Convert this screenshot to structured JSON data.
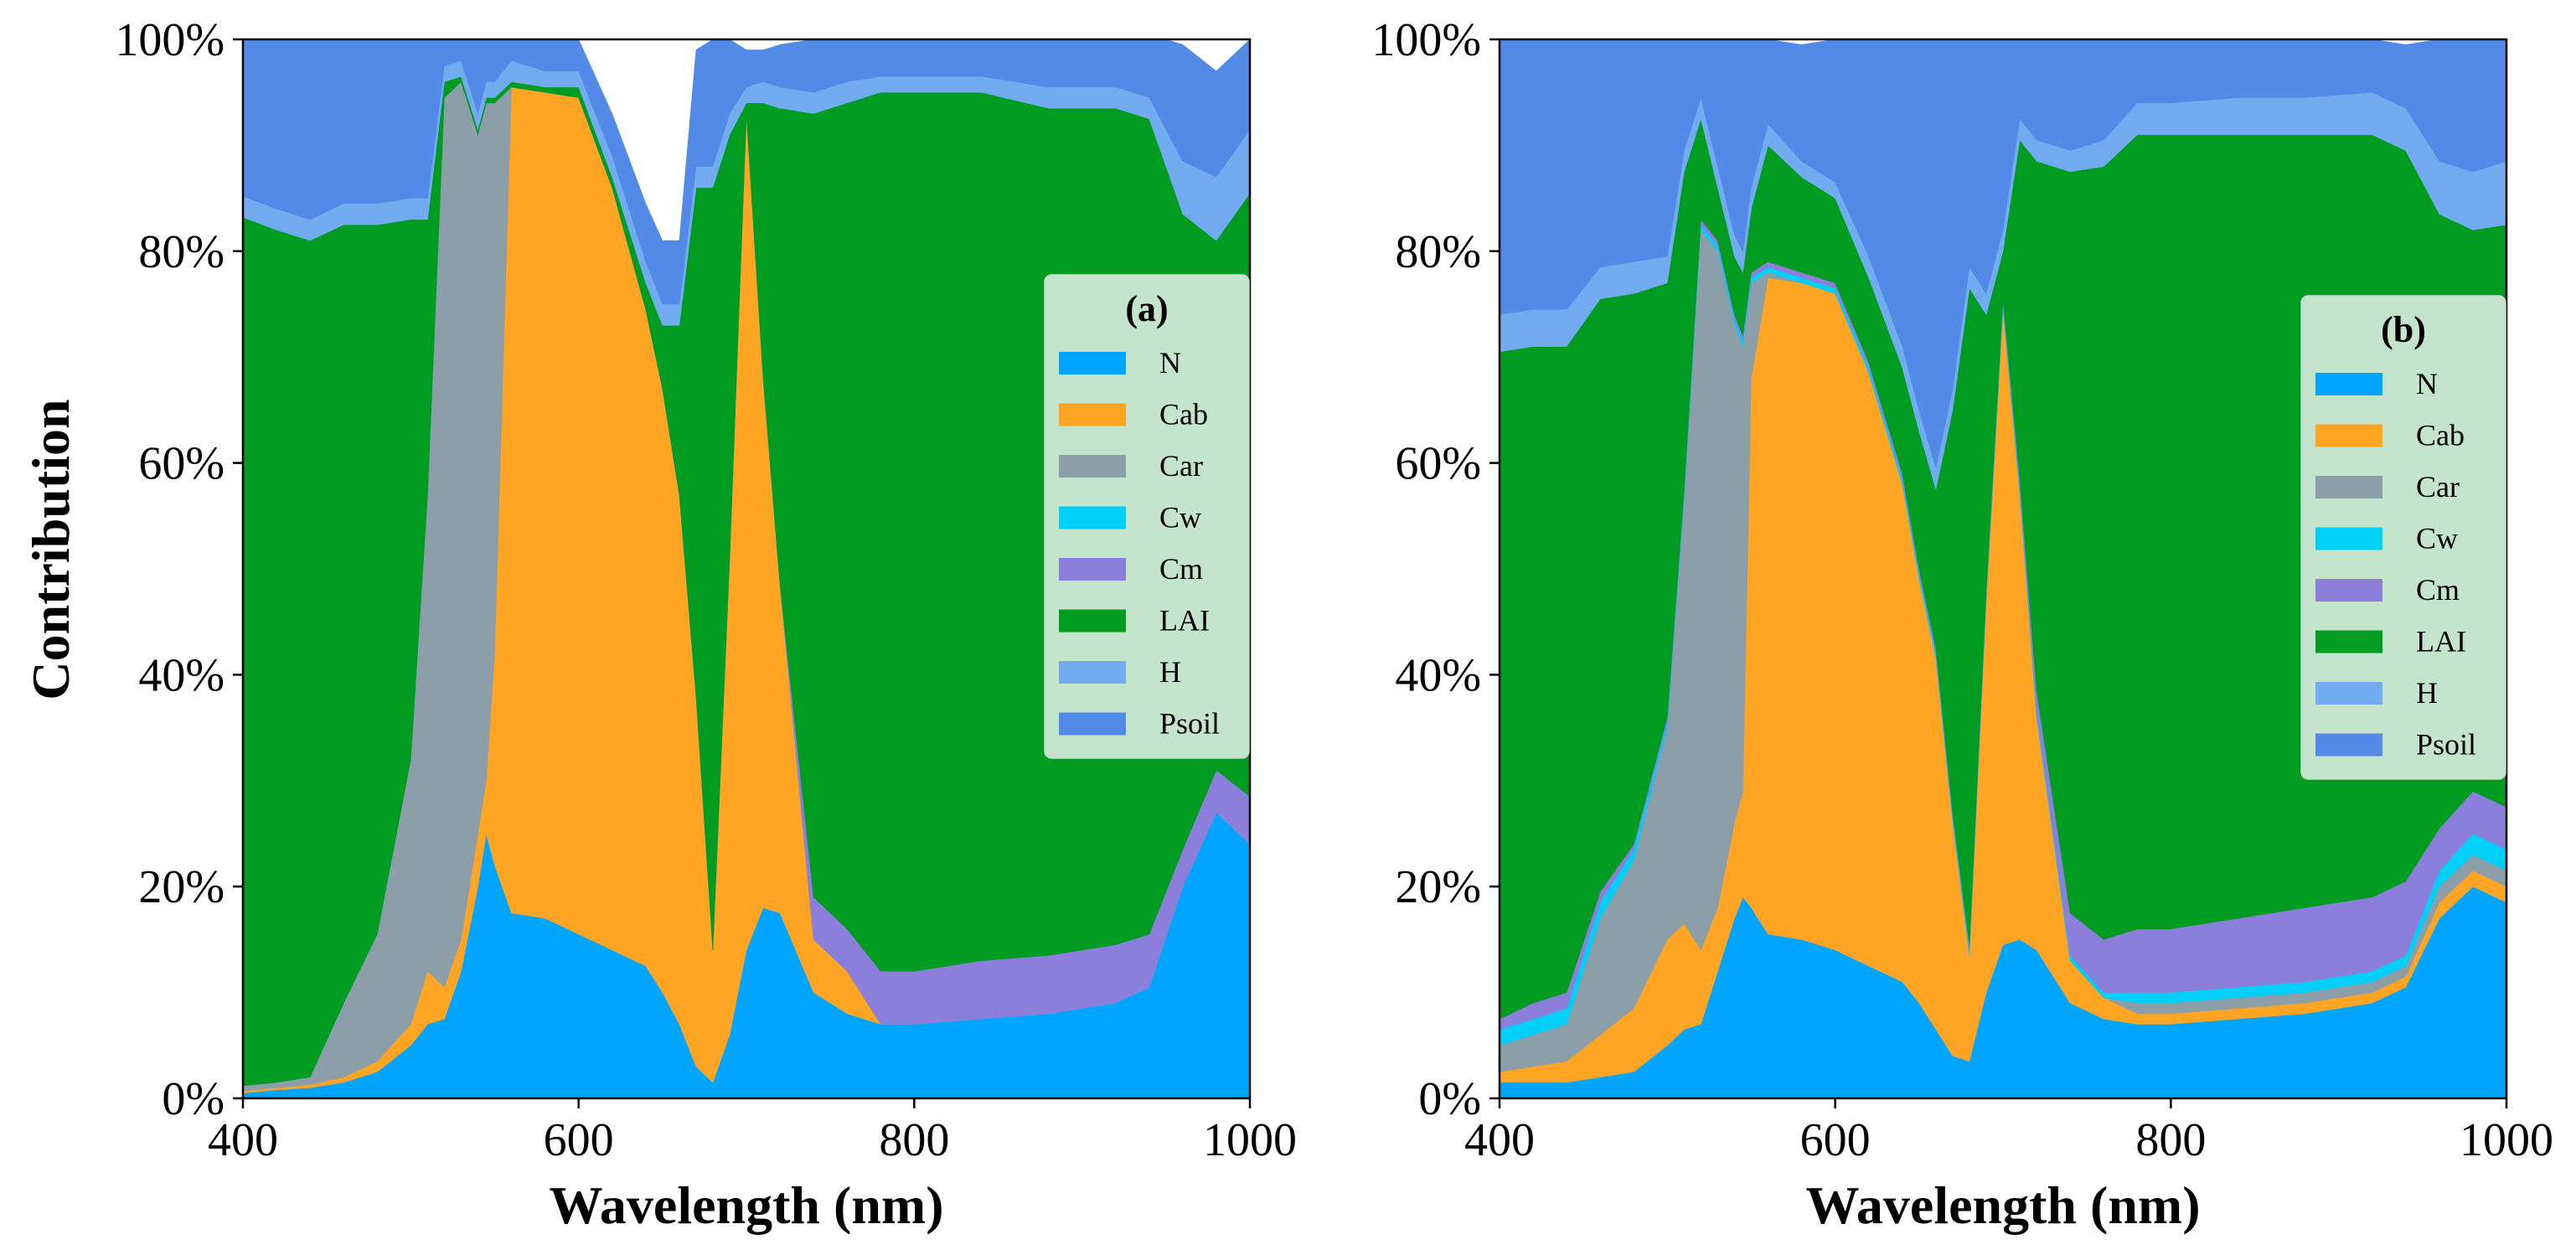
{
  "figure": {
    "ylabel": "Contribution",
    "xlabel": "Wavelength (nm)"
  },
  "colors": {
    "N": "#00a5ff",
    "Cab": "#ffa423",
    "Car": "#8c9ea8",
    "Cw": "#00d0f8",
    "Cm": "#8c7fdb",
    "LAI": "#009b21",
    "H": "#72abf0",
    "Psoil": "#538ae8"
  },
  "chart_data": [
    {
      "type": "area",
      "stacked": true,
      "panel": "a",
      "legend_title": "(a)",
      "legend_position": "center-right",
      "xlabel": "Wavelength (nm)",
      "ylabel": "Contribution",
      "xlim": [
        400,
        1000
      ],
      "ylim": [
        0,
        100
      ],
      "x_ticks": [
        "400",
        "600",
        "800",
        "1000"
      ],
      "y_ticks": [
        "0%",
        "20%",
        "40%",
        "60%",
        "80%",
        "100%"
      ],
      "x": [
        400,
        420,
        440,
        460,
        480,
        500,
        510,
        520,
        530,
        540,
        545,
        550,
        560,
        580,
        600,
        620,
        640,
        650,
        660,
        670,
        680,
        690,
        700,
        710,
        720,
        740,
        760,
        780,
        800,
        840,
        880,
        920,
        940,
        960,
        980,
        1000
      ],
      "series": [
        {
          "name": "N",
          "values": [
            0.5,
            0.8,
            1,
            1.5,
            2.5,
            5,
            7,
            7.5,
            12,
            20,
            25,
            22,
            17.5,
            17,
            15.5,
            14,
            12.5,
            10,
            7,
            3,
            1.5,
            6,
            14,
            18,
            17.5,
            10,
            8,
            7,
            7,
            7.5,
            8,
            9,
            10.5,
            20,
            27,
            24
          ]
        },
        {
          "name": "Cab",
          "values": [
            0.2,
            0.2,
            0.3,
            0.5,
            1,
            2,
            5,
            3,
            3,
            5,
            5,
            20,
            78,
            78,
            79,
            72,
            62,
            57,
            50,
            35,
            12.5,
            45,
            79,
            50,
            31,
            5,
            4,
            0,
            0,
            0,
            0,
            0,
            0,
            0,
            0,
            0
          ]
        },
        {
          "name": "Car",
          "values": [
            0.5,
            0.5,
            0.7,
            7,
            12,
            25,
            45,
            84,
            81,
            66,
            64,
            52,
            0,
            0,
            0,
            0,
            0,
            0,
            0,
            0,
            0,
            0,
            0,
            0,
            0,
            0,
            0,
            0,
            0,
            0,
            0,
            0,
            0,
            0,
            0,
            0
          ]
        },
        {
          "name": "Cw",
          "values": [
            0,
            0,
            0,
            0,
            0,
            0,
            0,
            0,
            0,
            0,
            0,
            0,
            0,
            0,
            0,
            0,
            0,
            0,
            0,
            0,
            0,
            0,
            0,
            0,
            0,
            0,
            0,
            0,
            0,
            0,
            0,
            0,
            0,
            0,
            0,
            0
          ]
        },
        {
          "name": "Cm",
          "values": [
            0,
            0,
            0,
            0,
            0,
            0,
            0,
            0,
            0,
            0,
            0,
            0,
            0,
            0,
            0,
            0,
            0,
            0,
            0,
            0,
            0,
            0,
            0,
            0,
            0,
            4,
            4,
            5,
            5,
            5.5,
            5.5,
            5.5,
            5,
            3.5,
            4,
            4.5
          ]
        },
        {
          "name": "LAI",
          "values": [
            82,
            80.5,
            79,
            73.5,
            67,
            51,
            26,
            1.5,
            0.5,
            0.5,
            0.5,
            0.5,
            0.5,
            0.5,
            1,
            1,
            2.5,
            6,
            16,
            48,
            72,
            40,
            1,
            26,
            45,
            74,
            78,
            83,
            83,
            82,
            80,
            79,
            77,
            60,
            50,
            57
          ]
        },
        {
          "name": "H",
          "values": [
            2,
            2,
            2,
            2,
            2,
            2,
            2,
            1.5,
            1.5,
            1.5,
            1.5,
            1.5,
            2,
            1.5,
            1.5,
            2,
            2,
            2,
            2,
            2,
            2,
            2,
            1.5,
            2,
            2,
            2,
            2,
            1.5,
            1.5,
            1.5,
            2,
            2,
            2,
            5,
            6,
            6
          ]
        },
        {
          "name": "Psoil",
          "values": [
            14.8,
            16,
            17,
            15.5,
            15.5,
            15,
            15,
            2.5,
            2,
            7,
            4,
            4,
            2,
            3,
            3,
            4,
            5.5,
            6,
            6,
            11,
            12,
            7,
            3.5,
            3,
            4,
            5,
            4,
            3.5,
            3.5,
            4,
            4.5,
            5.5,
            6,
            11,
            10,
            8.5
          ]
        }
      ]
    },
    {
      "type": "area",
      "stacked": true,
      "panel": "b",
      "legend_title": "(b)",
      "legend_position": "center-right",
      "xlabel": "Wavelength (nm)",
      "ylabel": "Contribution",
      "xlim": [
        400,
        1000
      ],
      "ylim": [
        0,
        100
      ],
      "x_ticks": [
        "400",
        "600",
        "800",
        "1000"
      ],
      "y_ticks": [
        "0%",
        "20%",
        "40%",
        "60%",
        "80%",
        "100%"
      ],
      "x": [
        400,
        420,
        440,
        460,
        480,
        500,
        510,
        520,
        530,
        540,
        545,
        550,
        560,
        580,
        600,
        620,
        640,
        650,
        660,
        670,
        680,
        690,
        700,
        710,
        720,
        740,
        760,
        780,
        800,
        840,
        880,
        920,
        940,
        960,
        980,
        1000
      ],
      "series": [
        {
          "name": "N",
          "values": [
            1.5,
            1.5,
            1.5,
            2,
            2.5,
            5,
            6.5,
            7,
            12,
            17,
            19,
            18,
            15.5,
            15,
            14,
            12.5,
            11,
            9,
            6.5,
            4,
            3.5,
            10,
            14.5,
            15,
            14,
            9,
            7.5,
            7,
            7,
            7.5,
            8,
            9,
            10.5,
            17,
            20,
            18.5
          ]
        },
        {
          "name": "Cab",
          "values": [
            1,
            1.5,
            2,
            4,
            6,
            10,
            10,
            7,
            6,
            9,
            10,
            50,
            62,
            62,
            62,
            56,
            47,
            40,
            35,
            22,
            10,
            37,
            60,
            42,
            22,
            4,
            2,
            1,
            1,
            1,
            1,
            1,
            1,
            1.5,
            1.5,
            1.5
          ]
        },
        {
          "name": "Car",
          "values": [
            2.5,
            3,
            3.5,
            11,
            14,
            20,
            40,
            68,
            62,
            47,
            42,
            9,
            0.5,
            0,
            0,
            0,
            0,
            0,
            0,
            0,
            0,
            0,
            0,
            0,
            0,
            0,
            0,
            1,
            1,
            1,
            1,
            1,
            1,
            1.5,
            1.5,
            1.5
          ]
        },
        {
          "name": "Cw",
          "values": [
            1.5,
            1.5,
            1.5,
            1.5,
            1,
            0.5,
            0.5,
            0.5,
            0.5,
            0.5,
            0.5,
            0.5,
            0.5,
            0.5,
            0.5,
            0.5,
            0.5,
            0.5,
            0.5,
            0.5,
            0.5,
            0.5,
            0.5,
            0.5,
            0.5,
            0.5,
            0.5,
            1,
            1,
            1,
            1,
            1,
            1,
            1.5,
            2,
            2
          ]
        },
        {
          "name": "Cm",
          "values": [
            1,
            1.5,
            1.5,
            1,
            0.5,
            0.5,
            0.5,
            0.5,
            0.5,
            0.5,
            0.5,
            0.5,
            0.5,
            0.5,
            0.5,
            0.5,
            0.5,
            0.5,
            0.5,
            0.5,
            0.5,
            0.5,
            0.5,
            1,
            2,
            4,
            5,
            6,
            6,
            6.5,
            7,
            7,
            7,
            4,
            4,
            4
          ]
        },
        {
          "name": "LAI",
          "values": [
            63,
            62,
            61,
            56,
            52,
            41,
            30,
            9.5,
            5,
            5.5,
            6,
            6,
            11,
            9,
            8,
            8,
            10,
            13,
            15,
            38,
            62,
            26,
            4.5,
            32,
            50,
            70,
            73,
            75,
            75,
            74,
            73,
            72,
            69,
            58,
            53,
            55
          ]
        },
        {
          "name": "H",
          "values": [
            3.5,
            3.5,
            3.5,
            3,
            3,
            2.5,
            2,
            2,
            2,
            2,
            2,
            2,
            2,
            1.5,
            1.5,
            2,
            2,
            2,
            2,
            2,
            2,
            2,
            2,
            2,
            2,
            2,
            2.5,
            3,
            3,
            3.5,
            3.5,
            4,
            4,
            5,
            5.5,
            6
          ]
        },
        {
          "name": "Psoil",
          "values": [
            26,
            25.5,
            25.5,
            21.5,
            21,
            20.5,
            20.5,
            5.5,
            12,
            18.5,
            20,
            14,
            8,
            11,
            13.5,
            20.5,
            29,
            35,
            40.5,
            33,
            21.5,
            24,
            18,
            7.5,
            9.5,
            10.5,
            9.5,
            6,
            6,
            5.5,
            5.5,
            5,
            6,
            11.5,
            12.5,
            11.5
          ]
        }
      ]
    }
  ]
}
